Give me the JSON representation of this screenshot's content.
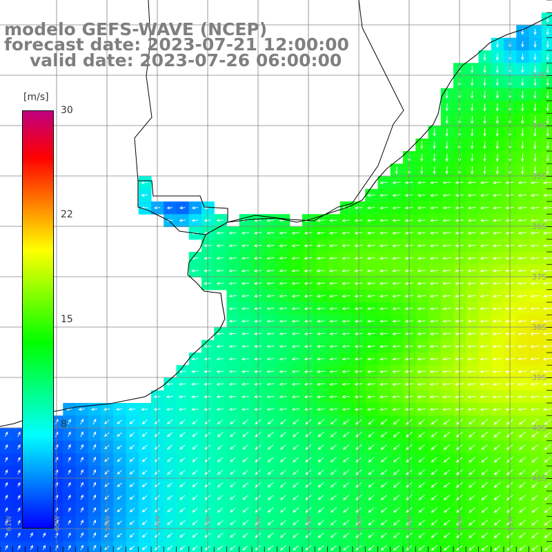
{
  "title": {
    "line1": "modelo GEFS-WAVE (NCEP)",
    "line2": "forecast date: 2023-07-21 12:00:00",
    "line3": "valid date: 2023-07-26 06:00:00"
  },
  "colorbar": {
    "unit": "[m/s]",
    "min": 0,
    "max": 30,
    "labels": [
      "30",
      "22",
      "15",
      "8"
    ],
    "label_values": [
      30,
      22,
      15,
      8
    ],
    "colors": [
      "#0000ff",
      "#0080ff",
      "#00ffff",
      "#00ff80",
      "#00ff00",
      "#80ff00",
      "#ffff00",
      "#ff8000",
      "#ff0000",
      "#c00080"
    ]
  },
  "lat_labels": [
    "33S",
    "34S",
    "35S",
    "36S",
    "37S",
    "38S",
    "39S",
    "40S",
    "41S"
  ],
  "lon_labels": [
    "61W",
    "60W",
    "59W",
    "58W",
    "57W",
    "56W",
    "55W",
    "54W",
    "53W",
    "52W",
    "51W"
  ],
  "colors": {
    "land": "#ffffff",
    "coast": "#000000",
    "grid": "#808080",
    "arrows": "#ffffff"
  }
}
